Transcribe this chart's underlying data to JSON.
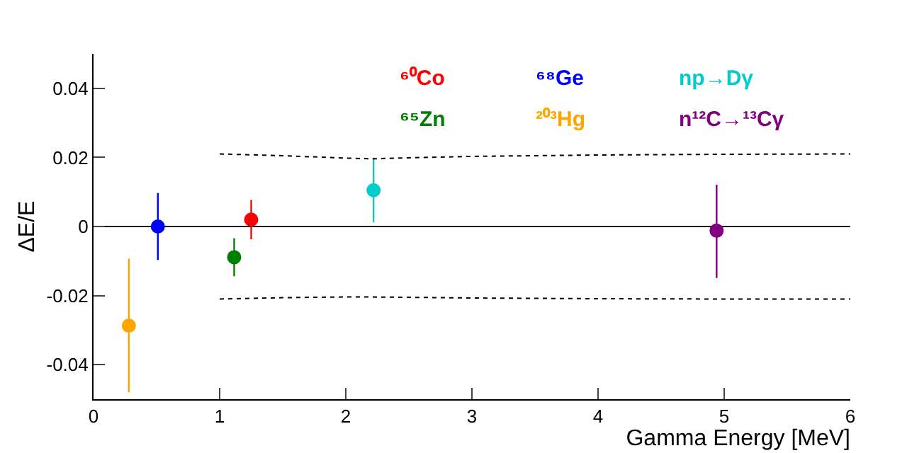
{
  "chart_data": {
    "type": "scatter",
    "xlabel": "Gamma Energy [MeV]",
    "ylabel": "ΔE/E",
    "xlim": [
      0,
      6
    ],
    "xticks": [
      0,
      1,
      2,
      3,
      4,
      5,
      6
    ],
    "ylim": [
      -0.05,
      0.05
    ],
    "yticks": [
      -0.04,
      -0.02,
      0,
      0.02,
      0.04
    ],
    "grid": false,
    "legend": false,
    "marker": "circle",
    "series": [
      {
        "name": "⁶⁰Co",
        "color": "#ff0000",
        "x": [
          1.25
        ],
        "values": [
          0.002
        ],
        "errors": [
          0.0057
        ]
      },
      {
        "name": "⁶⁵Zn",
        "color": "#008000",
        "x": [
          1.115
        ],
        "values": [
          -0.0089
        ],
        "errors": [
          0.0055
        ]
      },
      {
        "name": "⁶⁸Ge",
        "color": "#0000ff",
        "x": [
          0.51
        ],
        "values": [
          0
        ],
        "errors": [
          0.0097
        ]
      },
      {
        "name": "²⁰³Hg",
        "color": "#ffa500",
        "x": [
          0.28
        ],
        "values": [
          -0.0287
        ],
        "errors": [
          [
            -0.048,
            -0.0093
          ]
        ]
      },
      {
        "name": "np→Dγ",
        "color": "#00cccc",
        "x": [
          2.22
        ],
        "values": [
          0.0105
        ],
        "errors": [
          [
            0.0012,
            0.0199
          ]
        ]
      },
      {
        "name": "n¹²C→¹³Cγ",
        "color": "#800080",
        "x": [
          4.94
        ],
        "values": [
          -0.0012
        ],
        "errors": [
          [
            -0.0149,
            0.0121
          ]
        ]
      },
      {
        "type": "line",
        "line_style": "dotted",
        "marker": "none",
        "color": "#000000",
        "x": [
          1,
          1.5,
          2,
          2.2,
          2.5,
          3,
          4,
          5,
          6
        ],
        "values": [
          0.021,
          0.0205,
          0.0198,
          0.0196,
          0.0199,
          0.0203,
          0.0207,
          0.0209,
          0.021
        ]
      },
      {
        "type": "line",
        "line_style": "dotted",
        "marker": "none",
        "color": "#000000",
        "x": [
          1,
          1.5,
          2,
          2.2,
          2.5,
          3,
          4,
          5,
          6
        ],
        "values": [
          -0.021,
          -0.0206,
          -0.0204,
          -0.0204,
          -0.0205,
          -0.0207,
          -0.0209,
          -0.021,
          -0.021
        ]
      }
    ],
    "ref_lines": [
      {
        "axis": "y",
        "value": 0,
        "color": "#000000",
        "line_style": "solid"
      }
    ]
  }
}
